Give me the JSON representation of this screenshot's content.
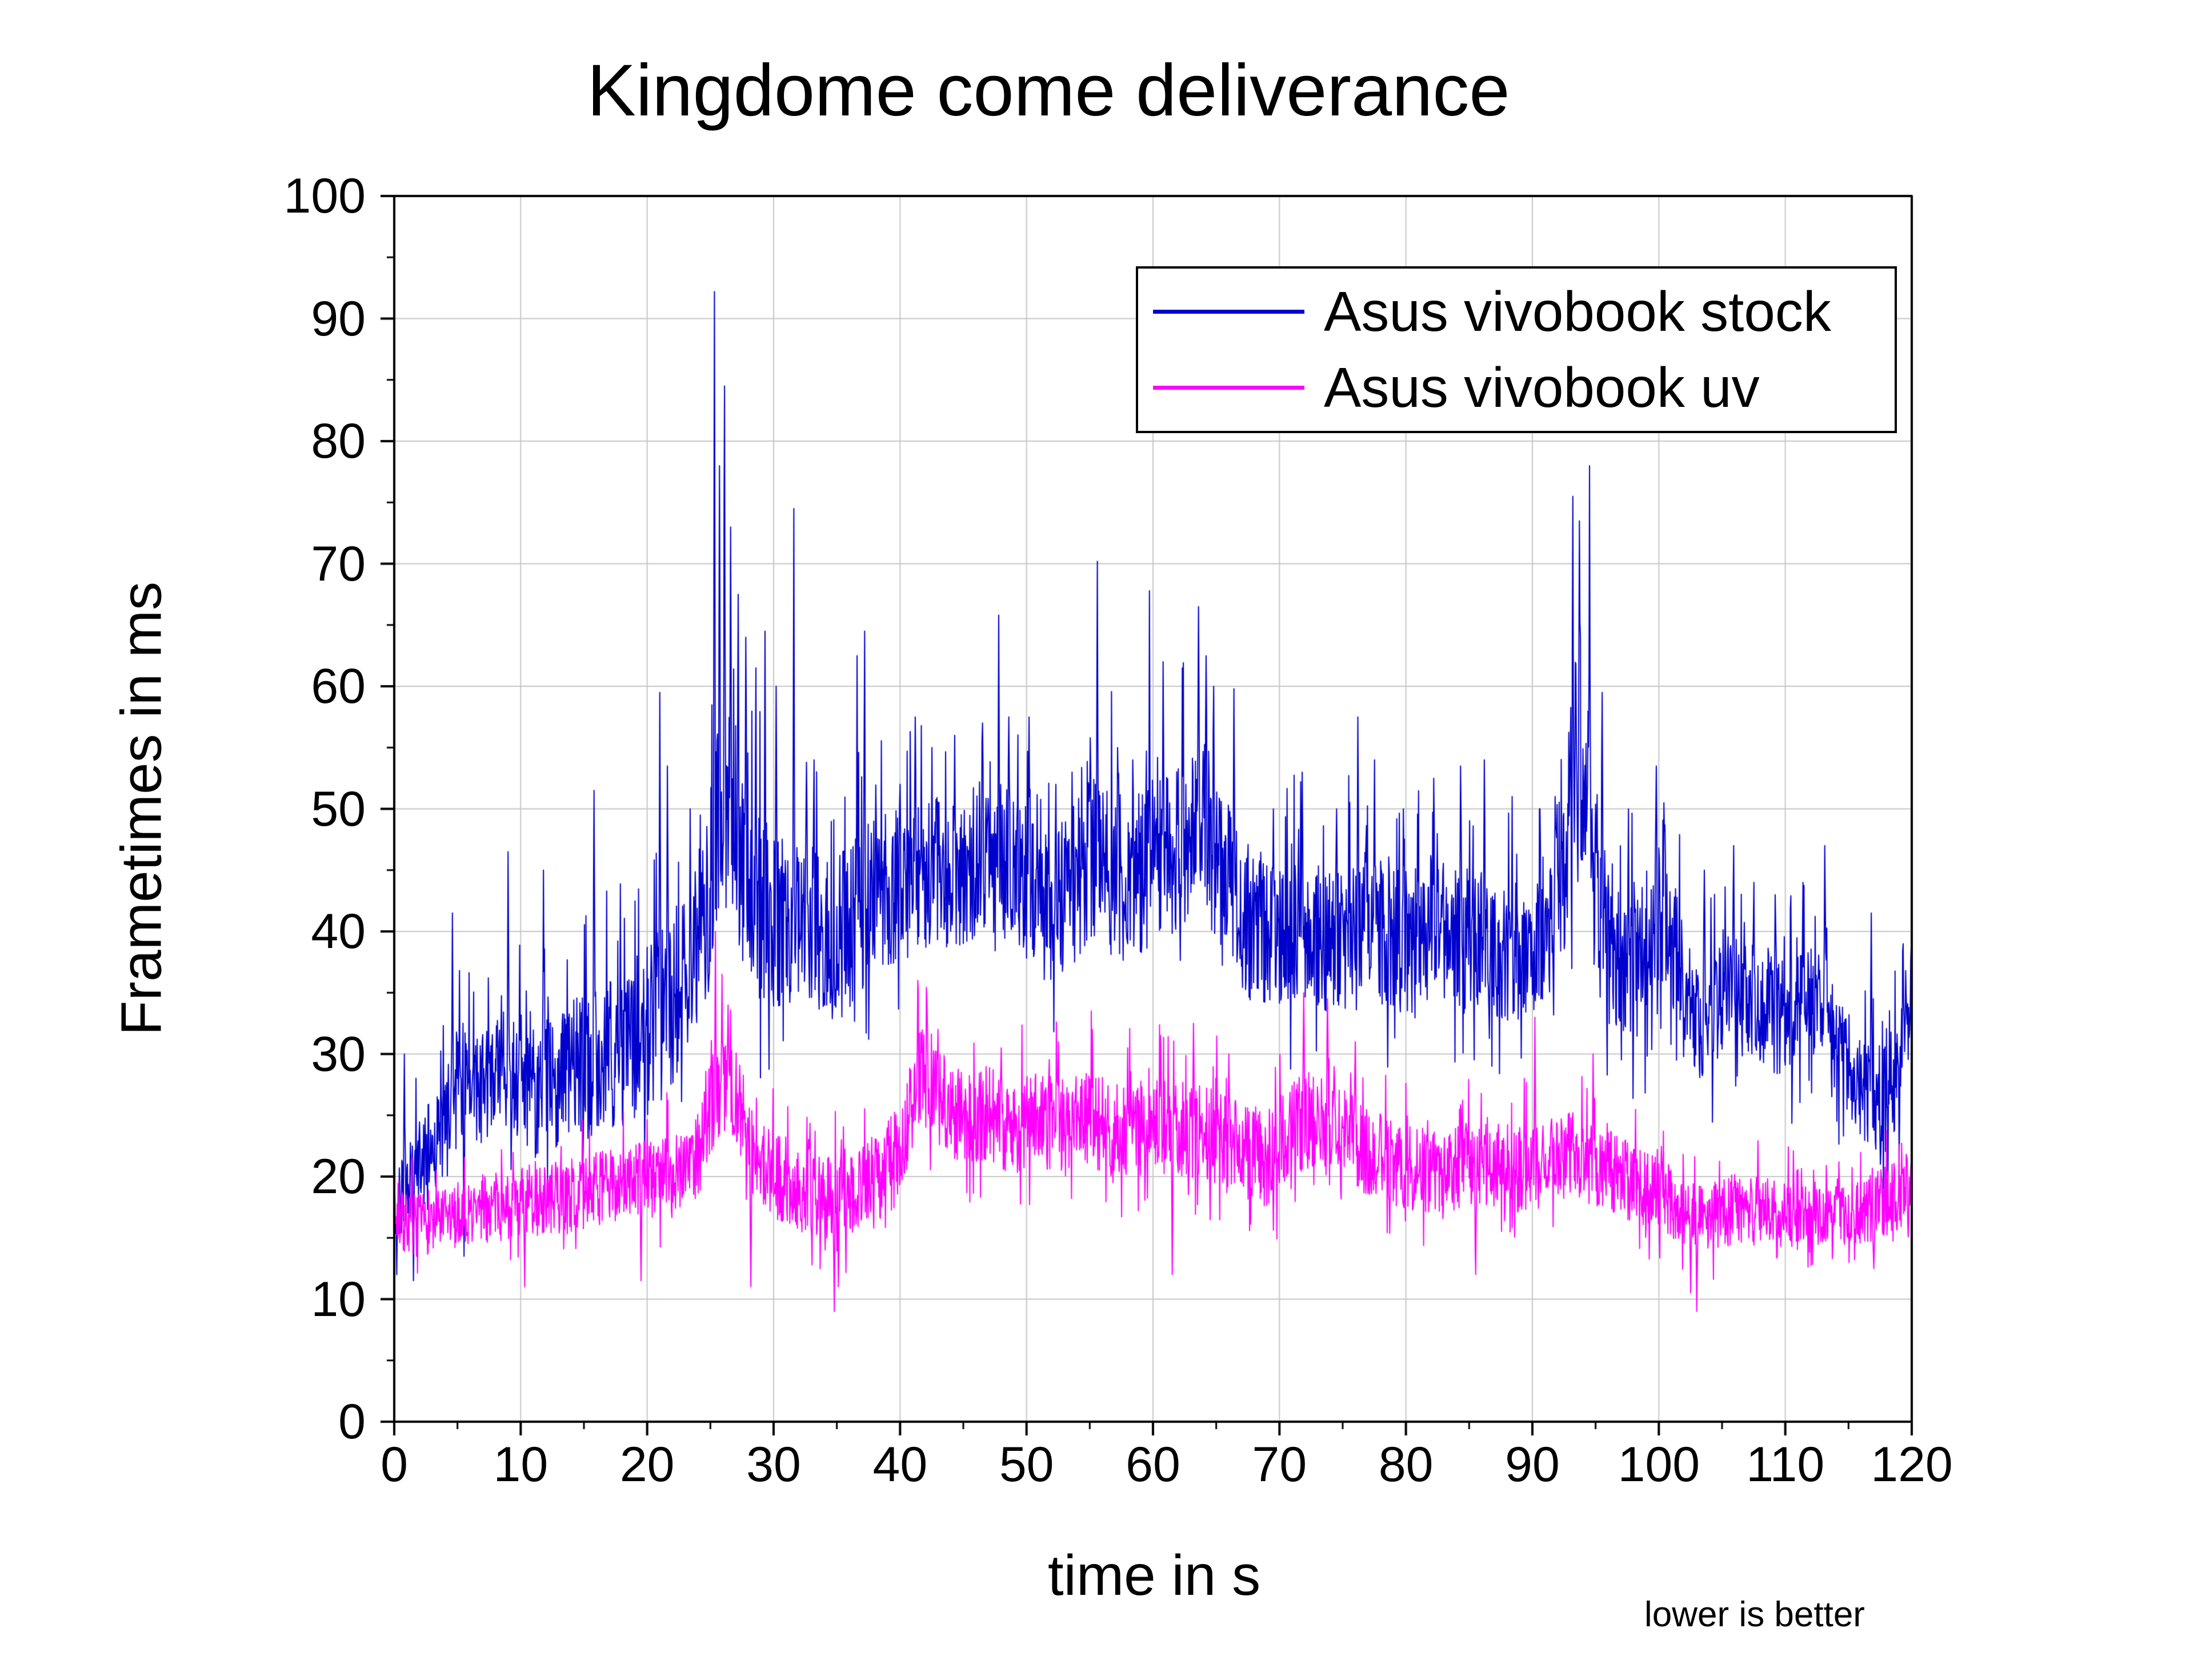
{
  "chart_data": {
    "type": "line",
    "title": "Kingdome come deliverance",
    "xlabel": "time in s",
    "ylabel": "Frametimes in ms",
    "annotation": "lower is better",
    "xlim": [
      0,
      120
    ],
    "ylim": [
      0,
      100
    ],
    "x_ticks": [
      0,
      10,
      20,
      30,
      40,
      50,
      60,
      70,
      80,
      90,
      100,
      110,
      120
    ],
    "y_ticks": [
      0,
      10,
      20,
      30,
      40,
      50,
      60,
      70,
      80,
      90,
      100
    ],
    "x_minor_step": 5,
    "y_minor_step": 5,
    "grid": true,
    "grid_color": "#c6c6c6",
    "axis_color": "#000000",
    "legend": {
      "position": "top-right",
      "entries": [
        {
          "label": "Asus vivobook stock",
          "color": "#0000cd"
        },
        {
          "label": "Asus vivobook uv",
          "color": "#ff00ff"
        }
      ]
    },
    "series": [
      {
        "name": "Asus vivobook stock",
        "color": "#0000cd",
        "seed": 42,
        "sample_dt": 0.04,
        "mean_anchors": [
          [
            0,
            17
          ],
          [
            0.5,
            19
          ],
          [
            2,
            21
          ],
          [
            4,
            24
          ],
          [
            5,
            28
          ],
          [
            6,
            27
          ],
          [
            8,
            28
          ],
          [
            9,
            29
          ],
          [
            11,
            27
          ],
          [
            13,
            28
          ],
          [
            15,
            29
          ],
          [
            17,
            30
          ],
          [
            19,
            31
          ],
          [
            21,
            33
          ],
          [
            23,
            36
          ],
          [
            24.5,
            40
          ],
          [
            25.5,
            48
          ],
          [
            26.5,
            50
          ],
          [
            27.5,
            45
          ],
          [
            29,
            42
          ],
          [
            31,
            40
          ],
          [
            33,
            40
          ],
          [
            35,
            39
          ],
          [
            37,
            42
          ],
          [
            39,
            43
          ],
          [
            41,
            44
          ],
          [
            43,
            45
          ],
          [
            45,
            44
          ],
          [
            47,
            46
          ],
          [
            49,
            45
          ],
          [
            51,
            42
          ],
          [
            53,
            43
          ],
          [
            55,
            46
          ],
          [
            57,
            44
          ],
          [
            59,
            45
          ],
          [
            61,
            46
          ],
          [
            63,
            48
          ],
          [
            64,
            49
          ],
          [
            65,
            46
          ],
          [
            66,
            44
          ],
          [
            67,
            42
          ],
          [
            68,
            40
          ],
          [
            70,
            39
          ],
          [
            72,
            40
          ],
          [
            74,
            39
          ],
          [
            76,
            41
          ],
          [
            78,
            40
          ],
          [
            80,
            39
          ],
          [
            82,
            40
          ],
          [
            84,
            40
          ],
          [
            86,
            39
          ],
          [
            88,
            38
          ],
          [
            90,
            38
          ],
          [
            92,
            41
          ],
          [
            93.5,
            50
          ],
          [
            94.3,
            52
          ],
          [
            95,
            44
          ],
          [
            96,
            39
          ],
          [
            97,
            37
          ],
          [
            98,
            36
          ],
          [
            99,
            38
          ],
          [
            100,
            42
          ],
          [
            100.8,
            40
          ],
          [
            102,
            35
          ],
          [
            103,
            33
          ],
          [
            104,
            34
          ],
          [
            106,
            35
          ],
          [
            108,
            34
          ],
          [
            110,
            33
          ],
          [
            112,
            34
          ],
          [
            113,
            35
          ],
          [
            114,
            31
          ],
          [
            115,
            29
          ],
          [
            116,
            27
          ],
          [
            117,
            26
          ],
          [
            118,
            27
          ],
          [
            119,
            28
          ],
          [
            120,
            36
          ]
        ],
        "noise_anchors": [
          [
            0,
            3
          ],
          [
            3,
            4
          ],
          [
            6,
            5
          ],
          [
            10,
            5
          ],
          [
            15,
            6
          ],
          [
            20,
            7
          ],
          [
            25,
            8
          ],
          [
            28,
            8
          ],
          [
            32,
            7
          ],
          [
            36,
            7
          ],
          [
            40,
            6
          ],
          [
            45,
            6
          ],
          [
            50,
            6
          ],
          [
            55,
            7
          ],
          [
            60,
            7
          ],
          [
            65,
            7
          ],
          [
            70,
            6
          ],
          [
            75,
            6
          ],
          [
            80,
            6
          ],
          [
            85,
            6
          ],
          [
            90,
            5
          ],
          [
            93,
            6
          ],
          [
            96,
            7
          ],
          [
            100,
            6
          ],
          [
            105,
            5
          ],
          [
            110,
            5
          ],
          [
            115,
            4
          ],
          [
            120,
            5
          ]
        ],
        "spikes": [
          [
            0.2,
            12
          ],
          [
            0.8,
            30
          ],
          [
            1.5,
            11.5
          ],
          [
            4.6,
            41.5
          ],
          [
            5.5,
            13.5
          ],
          [
            9,
            46.5
          ],
          [
            11.8,
            45
          ],
          [
            15.8,
            51.5
          ],
          [
            21,
            59.5
          ],
          [
            21.6,
            53.5
          ],
          [
            23.4,
            50
          ],
          [
            24.2,
            49.5
          ],
          [
            25.3,
            92.2
          ],
          [
            25.7,
            78
          ],
          [
            26.1,
            84.5
          ],
          [
            26.6,
            73
          ],
          [
            27.2,
            67.5
          ],
          [
            27.8,
            64
          ],
          [
            28.6,
            61.5
          ],
          [
            29.3,
            64.5
          ],
          [
            30.2,
            60
          ],
          [
            31.6,
            74.5
          ],
          [
            32.6,
            53.8
          ],
          [
            33.2,
            54
          ],
          [
            36.6,
            62.5
          ],
          [
            37.2,
            64.5
          ],
          [
            40,
            52
          ],
          [
            41.2,
            57.5
          ],
          [
            42.5,
            55
          ],
          [
            44.3,
            56
          ],
          [
            46.5,
            57
          ],
          [
            47.8,
            65.8
          ],
          [
            48.6,
            57.5
          ],
          [
            50.2,
            57.5
          ],
          [
            52.3,
            52
          ],
          [
            53.6,
            53
          ],
          [
            55.6,
            70.2
          ],
          [
            57.2,
            55
          ],
          [
            58.4,
            54
          ],
          [
            59.7,
            67.8
          ],
          [
            60.8,
            62
          ],
          [
            62.3,
            61.5
          ],
          [
            63.6,
            66.5
          ],
          [
            64.2,
            62.5
          ],
          [
            64.8,
            60
          ],
          [
            66.4,
            59.8
          ],
          [
            69.5,
            50
          ],
          [
            71.8,
            53
          ],
          [
            74.5,
            50
          ],
          [
            76.2,
            57.5
          ],
          [
            77.5,
            54
          ],
          [
            79.8,
            50
          ],
          [
            82.2,
            52.5
          ],
          [
            84.3,
            53.5
          ],
          [
            86.2,
            54
          ],
          [
            88.4,
            51
          ],
          [
            90.6,
            50
          ],
          [
            91.8,
            51
          ],
          [
            93.2,
            75.5
          ],
          [
            93.7,
            73.5
          ],
          [
            94.5,
            78
          ],
          [
            95.5,
            59.5
          ],
          [
            97.6,
            50
          ],
          [
            99.8,
            53.5
          ],
          [
            100.4,
            50.5
          ],
          [
            103.6,
            45
          ],
          [
            105.9,
            47
          ],
          [
            107.5,
            44
          ],
          [
            109.2,
            43
          ],
          [
            111.4,
            44
          ],
          [
            113.1,
            47
          ],
          [
            116.8,
            41.5
          ],
          [
            117.5,
            21
          ],
          [
            119.3,
            39
          ],
          [
            120,
            40
          ]
        ]
      },
      {
        "name": "Asus vivobook uv",
        "color": "#ff00ff",
        "seed": 7,
        "sample_dt": 0.04,
        "mean_anchors": [
          [
            0,
            16.5
          ],
          [
            2,
            16
          ],
          [
            4,
            16.5
          ],
          [
            6,
            17
          ],
          [
            8,
            17.5
          ],
          [
            10,
            18
          ],
          [
            12,
            18
          ],
          [
            14,
            18.5
          ],
          [
            16,
            19
          ],
          [
            18,
            19.5
          ],
          [
            20,
            20
          ],
          [
            22,
            20.5
          ],
          [
            24,
            22
          ],
          [
            25.5,
            27
          ],
          [
            26.5,
            28
          ],
          [
            27.5,
            25
          ],
          [
            28.5,
            21
          ],
          [
            30,
            20
          ],
          [
            32,
            19
          ],
          [
            34,
            18.5
          ],
          [
            36,
            19
          ],
          [
            38,
            19.5
          ],
          [
            40,
            22
          ],
          [
            41.5,
            28
          ],
          [
            42.5,
            28
          ],
          [
            43.5,
            26
          ],
          [
            45,
            25
          ],
          [
            47,
            25
          ],
          [
            49,
            24
          ],
          [
            51,
            25
          ],
          [
            53,
            24
          ],
          [
            55,
            25
          ],
          [
            57,
            23.5
          ],
          [
            59,
            24
          ],
          [
            61,
            24
          ],
          [
            63,
            24
          ],
          [
            65,
            23
          ],
          [
            67,
            22
          ],
          [
            69,
            21.5
          ],
          [
            71,
            24
          ],
          [
            73,
            25
          ],
          [
            75,
            24
          ],
          [
            77,
            22
          ],
          [
            79,
            21
          ],
          [
            81,
            20.5
          ],
          [
            83,
            20.5
          ],
          [
            85,
            21
          ],
          [
            87,
            21
          ],
          [
            89,
            20.5
          ],
          [
            91,
            21
          ],
          [
            93,
            22
          ],
          [
            95,
            21
          ],
          [
            97,
            20
          ],
          [
            99,
            19
          ],
          [
            101,
            18
          ],
          [
            103,
            16.5
          ],
          [
            105,
            17
          ],
          [
            107,
            17.5
          ],
          [
            109,
            17
          ],
          [
            111,
            17
          ],
          [
            113,
            17
          ],
          [
            115,
            17
          ],
          [
            117,
            17.5
          ],
          [
            119,
            18.5
          ],
          [
            120,
            19.5
          ]
        ],
        "noise_anchors": [
          [
            0,
            2.5
          ],
          [
            5,
            2.5
          ],
          [
            10,
            3
          ],
          [
            15,
            3
          ],
          [
            20,
            3
          ],
          [
            25,
            4
          ],
          [
            30,
            3.5
          ],
          [
            35,
            3.5
          ],
          [
            40,
            4
          ],
          [
            45,
            4
          ],
          [
            50,
            4
          ],
          [
            55,
            4
          ],
          [
            60,
            4
          ],
          [
            65,
            4
          ],
          [
            70,
            4
          ],
          [
            75,
            4
          ],
          [
            80,
            3.5
          ],
          [
            85,
            3.5
          ],
          [
            90,
            3.5
          ],
          [
            95,
            3.5
          ],
          [
            100,
            3
          ],
          [
            105,
            2.8
          ],
          [
            110,
            2.6
          ],
          [
            115,
            2.6
          ],
          [
            120,
            3
          ]
        ],
        "spikes": [
          [
            10.3,
            11
          ],
          [
            19.5,
            11.5
          ],
          [
            25.4,
            40
          ],
          [
            25.9,
            36.5
          ],
          [
            26.4,
            34
          ],
          [
            28.2,
            11
          ],
          [
            34.8,
            9
          ],
          [
            35.1,
            11
          ],
          [
            41.4,
            36
          ],
          [
            42.1,
            34.5
          ],
          [
            43,
            32
          ],
          [
            48,
            30.5
          ],
          [
            52.5,
            31
          ],
          [
            55.2,
            32
          ],
          [
            58,
            30.5
          ],
          [
            60.6,
            31.5
          ],
          [
            61.5,
            12
          ],
          [
            63.2,
            32.5
          ],
          [
            66,
            30
          ],
          [
            71.9,
            35
          ],
          [
            73.8,
            34.5
          ],
          [
            76,
            31
          ],
          [
            85.5,
            12
          ],
          [
            90.2,
            33
          ],
          [
            94.8,
            30
          ],
          [
            102.5,
            10.5
          ],
          [
            103,
            9
          ],
          [
            117,
            12.5
          ],
          [
            120,
            22
          ]
        ]
      }
    ]
  }
}
